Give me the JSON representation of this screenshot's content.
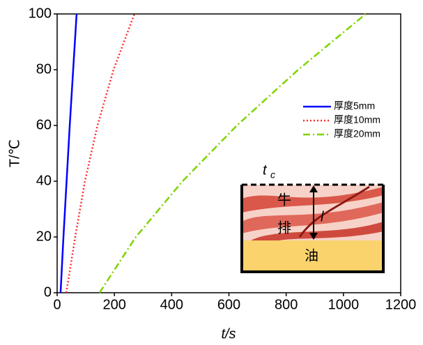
{
  "chart_data": {
    "type": "line",
    "xlabel": "t/s",
    "ylabel": "T/℃",
    "xlim": [
      0,
      1200
    ],
    "ylim": [
      0,
      100
    ],
    "xticks": [
      0,
      200,
      400,
      600,
      800,
      1000,
      1200
    ],
    "yticks": [
      0,
      20,
      40,
      60,
      80,
      100
    ],
    "grid": false,
    "legend": "right",
    "series": [
      {
        "name": "厚度5mm",
        "color": "#0000ff",
        "dash": "solid",
        "x": [
          12,
          22,
          33,
          44,
          56,
          68
        ],
        "values": [
          0,
          20,
          40,
          60,
          80,
          100
        ]
      },
      {
        "name": "厚度10mm",
        "color": "#ff2a2a",
        "dash": "dotted",
        "x": [
          32,
          63,
          97,
          141,
          197,
          270
        ],
        "values": [
          0,
          20,
          40,
          60,
          80,
          100
        ]
      },
      {
        "name": "厚度20mm",
        "color": "#7fd300",
        "dash": "dashdot",
        "x": [
          148,
          275,
          438,
          628,
          842,
          1078
        ],
        "values": [
          0,
          20,
          40,
          60,
          80,
          100
        ]
      }
    ],
    "inset": {
      "top_label": "t",
      "top_label_sub": "c",
      "thickness_label": "l",
      "meat_label_1": "牛",
      "meat_label_2": "排",
      "oil_label": "油"
    }
  }
}
